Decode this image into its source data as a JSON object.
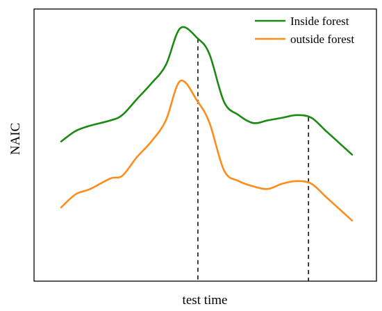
{
  "chart_data": {
    "type": "line",
    "title": "",
    "xlabel": "test time",
    "ylabel": "NAIC",
    "x_ticks": false,
    "y_ticks": false,
    "grid": false,
    "legend_position": "top-right",
    "xlim": [
      0,
      100
    ],
    "ylim": [
      0,
      100
    ],
    "x": [
      0,
      5,
      10,
      17,
      21,
      26,
      31,
      36,
      41,
      47,
      51,
      56,
      61,
      66,
      71,
      76,
      81,
      86,
      91,
      96,
      100
    ],
    "series": [
      {
        "name": "Inside forest",
        "color": "#1a8a12",
        "values": [
          49,
          53,
          55,
          57,
          59,
          65,
          71,
          78,
          92,
          88,
          82,
          64,
          59,
          56,
          57,
          58,
          59,
          58,
          53,
          48,
          44
        ]
      },
      {
        "name": "outside forest",
        "color": "#ff8c1a",
        "values": [
          24,
          29,
          31,
          35,
          36,
          43,
          49,
          57,
          72,
          64,
          56,
          38,
          34,
          32,
          31,
          33,
          34,
          33,
          28,
          23,
          19
        ]
      }
    ],
    "reference_lines_x": [
      47,
      85
    ]
  }
}
